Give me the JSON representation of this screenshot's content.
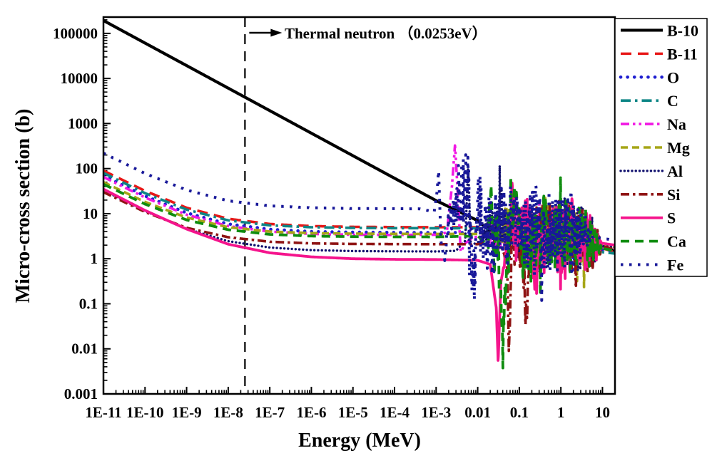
{
  "chart_data": {
    "type": "line",
    "title": "",
    "xlabel": "Energy (MeV)",
    "ylabel": "Micro-cross section (b)",
    "x_scale": "log",
    "y_scale": "log",
    "xlim": [
      1e-11,
      20
    ],
    "ylim": [
      0.001,
      230000
    ],
    "grid": false,
    "legend_position": "outside-right",
    "x_ticks": [
      {
        "v": 1e-11,
        "label": "1E-11"
      },
      {
        "v": 1e-10,
        "label": "1E-10"
      },
      {
        "v": 1e-09,
        "label": "1E-9"
      },
      {
        "v": 1e-08,
        "label": "1E-8"
      },
      {
        "v": 1e-07,
        "label": "1E-7"
      },
      {
        "v": 1e-06,
        "label": "1E-6"
      },
      {
        "v": 1e-05,
        "label": "1E-5"
      },
      {
        "v": 0.0001,
        "label": "1E-4"
      },
      {
        "v": 0.001,
        "label": "1E-3"
      },
      {
        "v": 0.01,
        "label": "0.01"
      },
      {
        "v": 0.1,
        "label": "0.1"
      },
      {
        "v": 1,
        "label": "1"
      },
      {
        "v": 10,
        "label": "10"
      }
    ],
    "y_ticks": [
      {
        "v": 0.001,
        "label": "0.001"
      },
      {
        "v": 0.01,
        "label": "0.01"
      },
      {
        "v": 0.1,
        "label": "0.1"
      },
      {
        "v": 1,
        "label": "1"
      },
      {
        "v": 10,
        "label": "10"
      },
      {
        "v": 100,
        "label": "100"
      },
      {
        "v": 1000,
        "label": "1000"
      },
      {
        "v": 10000,
        "label": "10000"
      },
      {
        "v": 100000,
        "label": "100000"
      }
    ],
    "annotation": {
      "text": "Thermal neutron （0.0253eV）",
      "energy_mev": 2.53e-08,
      "marker": "dashed-vertical-line-with-arrow"
    },
    "series": [
      {
        "name": "B-10",
        "color": "#000000",
        "dash": "",
        "cap": "butt",
        "width": 4.2,
        "anchors": [
          [
            1e-11,
            193000
          ],
          [
            1e-10,
            61000
          ],
          [
            1e-09,
            19300
          ],
          [
            1e-08,
            6100
          ],
          [
            1e-07,
            1930
          ],
          [
            1e-06,
            610
          ],
          [
            1e-05,
            193
          ],
          [
            0.0001,
            61
          ],
          [
            0.001,
            19.5
          ],
          [
            0.01,
            7
          ],
          [
            0.025,
            3.4
          ],
          [
            0.06,
            2.9
          ],
          [
            0.2,
            2.5
          ],
          [
            1,
            2.3
          ],
          [
            4,
            2.0
          ],
          [
            10,
            1.8
          ],
          [
            20,
            1.5
          ]
        ],
        "noise": null
      },
      {
        "name": "B-11",
        "color": "#e81717",
        "dash": "15 9",
        "cap": "butt",
        "width": 3.6,
        "anchors": [
          [
            1e-11,
            90
          ],
          [
            1e-10,
            32
          ],
          [
            1e-09,
            13.5
          ],
          [
            1e-08,
            7.7
          ],
          [
            1e-07,
            5.9
          ],
          [
            1e-06,
            5.3
          ],
          [
            1e-05,
            5.1
          ],
          [
            0.0001,
            5.03
          ],
          [
            0.001,
            5.0
          ],
          [
            0.01,
            5.0
          ],
          [
            0.1,
            4.8
          ],
          [
            0.4,
            4.4
          ],
          [
            1,
            4.0
          ],
          [
            3,
            2.8
          ],
          [
            6,
            2.0
          ],
          [
            10,
            1.7
          ],
          [
            20,
            1.4
          ]
        ],
        "noise": {
          "from": 0.3,
          "to": 10,
          "amp": 0.28,
          "points": 110,
          "seed": 7
        }
      },
      {
        "name": "O",
        "color": "#1f1fd0",
        "dash": "0.1 9.5",
        "cap": "round",
        "width": 4.6,
        "anchors": [
          [
            1e-11,
            70
          ],
          [
            1e-10,
            24.7
          ],
          [
            1e-09,
            10.4
          ],
          [
            1e-08,
            5.9
          ],
          [
            1e-07,
            4.5
          ],
          [
            1e-06,
            4.0
          ],
          [
            1e-05,
            3.87
          ],
          [
            0.0001,
            3.82
          ],
          [
            0.001,
            3.8
          ],
          [
            0.01,
            3.8
          ],
          [
            0.1,
            3.75
          ],
          [
            0.3,
            3.7
          ],
          [
            0.44,
            8
          ],
          [
            0.6,
            3.0
          ],
          [
            1,
            6.0
          ],
          [
            2.3,
            0.9
          ],
          [
            3,
            5.0
          ],
          [
            4,
            2.5
          ],
          [
            6,
            1.8
          ],
          [
            10,
            1.6
          ],
          [
            20,
            1.5
          ]
        ],
        "noise": {
          "from": 0.35,
          "to": 8,
          "amp": 0.5,
          "points": 140,
          "seed": 11
        }
      },
      {
        "name": "C",
        "color": "#0d8585",
        "dash": "14 6 3.5 6",
        "cap": "butt",
        "width": 3.6,
        "anchors": [
          [
            1e-11,
            80
          ],
          [
            1e-10,
            28.5
          ],
          [
            1e-09,
            12.3
          ],
          [
            1e-08,
            7.1
          ],
          [
            1e-07,
            5.5
          ],
          [
            1e-06,
            5.0
          ],
          [
            1e-05,
            4.83
          ],
          [
            0.0001,
            4.77
          ],
          [
            0.001,
            4.75
          ],
          [
            0.01,
            4.75
          ],
          [
            0.1,
            4.6
          ],
          [
            0.5,
            4.3
          ],
          [
            1,
            3.9
          ],
          [
            2,
            3.2
          ],
          [
            3,
            2.7
          ],
          [
            4.5,
            1.9
          ],
          [
            6,
            1.4
          ],
          [
            10,
            1.4
          ],
          [
            20,
            1.3
          ]
        ],
        "noise": {
          "from": 1.8,
          "to": 8,
          "amp": 0.35,
          "points": 90,
          "seed": 13
        }
      },
      {
        "name": "Na",
        "color": "#f118e3",
        "dash": "12 5 3.5 5 3.5 5",
        "cap": "butt",
        "width": 3.6,
        "anchors": [
          [
            1e-11,
            65
          ],
          [
            1e-10,
            22.8
          ],
          [
            1e-09,
            9.5
          ],
          [
            1e-08,
            5.3
          ],
          [
            1e-07,
            4.0
          ],
          [
            1e-06,
            3.55
          ],
          [
            1e-05,
            3.41
          ],
          [
            0.0001,
            3.37
          ],
          [
            0.001,
            3.4
          ],
          [
            0.0018,
            3.8
          ],
          [
            0.0024,
            40
          ],
          [
            0.00285,
            340
          ],
          [
            0.0033,
            30
          ],
          [
            0.0039,
            1.4
          ],
          [
            0.005,
            2.2
          ],
          [
            0.008,
            3.0
          ],
          [
            0.02,
            3.2
          ],
          [
            0.05,
            3.3
          ],
          [
            0.2,
            4.0
          ],
          [
            0.5,
            6.0
          ],
          [
            1,
            3.5
          ],
          [
            3,
            2.5
          ],
          [
            10,
            1.8
          ],
          [
            20,
            1.7
          ]
        ],
        "noise": {
          "from": 0.012,
          "to": 10,
          "amp": 0.55,
          "points": 150,
          "seed": 17
        }
      },
      {
        "name": "Mg",
        "color": "#a6a617",
        "dash": "10 6",
        "cap": "butt",
        "width": 3.6,
        "anchors": [
          [
            1e-11,
            50
          ],
          [
            1e-10,
            18.2
          ],
          [
            1e-09,
            8.2
          ],
          [
            1e-08,
            5.0
          ],
          [
            1e-07,
            4.0
          ],
          [
            1e-06,
            3.7
          ],
          [
            1e-05,
            3.6
          ],
          [
            0.0001,
            3.56
          ],
          [
            0.001,
            3.55
          ],
          [
            0.01,
            3.55
          ],
          [
            0.03,
            3.6
          ],
          [
            0.08,
            6.0
          ],
          [
            0.15,
            2.5
          ],
          [
            0.4,
            4.0
          ],
          [
            1,
            3.6
          ],
          [
            3,
            2.6
          ],
          [
            6,
            2.1
          ],
          [
            10,
            1.9
          ],
          [
            20,
            1.8
          ]
        ],
        "noise": {
          "from": 0.025,
          "to": 10,
          "amp": 0.7,
          "points": 170,
          "seed": 19
        }
      },
      {
        "name": "Al",
        "color": "#10106e",
        "dash": "0.1 5.2",
        "cap": "round",
        "width": 3.4,
        "anchors": [
          [
            1e-11,
            33
          ],
          [
            1e-10,
            11.4
          ],
          [
            1e-09,
            4.6
          ],
          [
            1e-08,
            2.45
          ],
          [
            1e-07,
            1.77
          ],
          [
            1e-06,
            1.55
          ],
          [
            1e-05,
            1.48
          ],
          [
            0.0001,
            1.46
          ],
          [
            0.001,
            1.45
          ],
          [
            0.003,
            1.5
          ],
          [
            0.005,
            2.5
          ],
          [
            0.0059,
            115
          ],
          [
            0.0068,
            2.0
          ],
          [
            0.01,
            2.3
          ],
          [
            0.035,
            8.0
          ],
          [
            0.1,
            3.2
          ],
          [
            0.3,
            3.0
          ],
          [
            1,
            3.3
          ],
          [
            3,
            2.8
          ],
          [
            6,
            2.2
          ],
          [
            10,
            1.9
          ],
          [
            20,
            1.8
          ]
        ],
        "noise": {
          "from": 0.012,
          "to": 10,
          "amp": 0.8,
          "points": 280,
          "seed": 23
        }
      },
      {
        "name": "Si",
        "color": "#8f1414",
        "dash": "12 5 3.5 5",
        "cap": "butt",
        "width": 3.6,
        "anchors": [
          [
            1e-11,
            30
          ],
          [
            1e-10,
            10.9
          ],
          [
            1e-09,
            4.85
          ],
          [
            1e-08,
            3.0
          ],
          [
            1e-07,
            2.38
          ],
          [
            1e-06,
            2.19
          ],
          [
            1e-05,
            2.13
          ],
          [
            0.0001,
            2.11
          ],
          [
            0.001,
            2.1
          ],
          [
            0.01,
            2.1
          ],
          [
            0.03,
            2.6
          ],
          [
            0.05,
            1.0
          ],
          [
            0.056,
            0.008
          ],
          [
            0.065,
            2.5
          ],
          [
            0.1,
            3.0
          ],
          [
            0.15,
            0.06
          ],
          [
            0.19,
            3.5
          ],
          [
            0.5,
            3.5
          ],
          [
            1,
            3.6
          ],
          [
            3,
            2.9
          ],
          [
            6,
            2.2
          ],
          [
            10,
            1.9
          ],
          [
            20,
            1.6
          ]
        ],
        "noise": {
          "from": 0.04,
          "to": 10,
          "amp": 0.8,
          "points": 180,
          "seed": 29
        }
      },
      {
        "name": "S",
        "color": "#f5148c",
        "dash": "",
        "cap": "butt",
        "width": 3.8,
        "anchors": [
          [
            1e-11,
            35
          ],
          [
            1e-10,
            11.8
          ],
          [
            1e-09,
            4.55
          ],
          [
            1e-08,
            2.1
          ],
          [
            1e-07,
            1.35
          ],
          [
            1e-06,
            1.1
          ],
          [
            1e-05,
            1.0
          ],
          [
            0.0001,
            0.97
          ],
          [
            0.001,
            0.96
          ],
          [
            0.01,
            0.92
          ],
          [
            0.02,
            0.75
          ],
          [
            0.028,
            0.08
          ],
          [
            0.031,
            0.005
          ],
          [
            0.036,
            0.3
          ],
          [
            0.05,
            1.5
          ],
          [
            0.07,
            25
          ],
          [
            0.09,
            1.0
          ],
          [
            0.11,
            15
          ],
          [
            0.2,
            2.0
          ],
          [
            0.5,
            3.0
          ],
          [
            1,
            3.2
          ],
          [
            3,
            2.8
          ],
          [
            6,
            2.4
          ],
          [
            10,
            2.2
          ],
          [
            20,
            2.0
          ]
        ],
        "noise": {
          "from": 0.04,
          "to": 10,
          "amp": 0.85,
          "points": 200,
          "seed": 31
        }
      },
      {
        "name": "Ca",
        "color": "#0f8c0f",
        "dash": "12 8",
        "cap": "butt",
        "width": 3.8,
        "anchors": [
          [
            1e-11,
            45
          ],
          [
            1e-10,
            16.3
          ],
          [
            1e-09,
            7.25
          ],
          [
            1e-08,
            4.4
          ],
          [
            1e-07,
            3.47
          ],
          [
            1e-06,
            3.18
          ],
          [
            1e-05,
            3.09
          ],
          [
            0.0001,
            3.06
          ],
          [
            0.001,
            3.05
          ],
          [
            0.01,
            3.2
          ],
          [
            0.018,
            2.0
          ],
          [
            0.021,
            75
          ],
          [
            0.024,
            0.6
          ],
          [
            0.03,
            6.0
          ],
          [
            0.04,
            0.012
          ],
          [
            0.055,
            8.0
          ],
          [
            0.09,
            40
          ],
          [
            0.13,
            1.0
          ],
          [
            0.3,
            3.0
          ],
          [
            1,
            4.0
          ],
          [
            3,
            2.5
          ],
          [
            6,
            2.0
          ],
          [
            10,
            1.7
          ],
          [
            20,
            1.5
          ]
        ],
        "noise": {
          "from": 0.015,
          "to": 10,
          "amp": 0.85,
          "points": 210,
          "seed": 37
        }
      },
      {
        "name": "Fe",
        "color": "#181899",
        "dash": "3.5 8.5",
        "cap": "butt",
        "width": 4,
        "anchors": [
          [
            1e-11,
            220
          ],
          [
            1e-10,
            78
          ],
          [
            1e-09,
            33.5
          ],
          [
            1e-08,
            19.3
          ],
          [
            1e-07,
            14.9
          ],
          [
            1e-06,
            13.5
          ],
          [
            1e-05,
            13.0
          ],
          [
            0.0001,
            12.9
          ],
          [
            0.0004,
            12.8
          ],
          [
            0.0009,
            11
          ],
          [
            0.00105,
            30
          ],
          [
            0.00115,
            95
          ],
          [
            0.0013,
            2.5
          ],
          [
            0.0016,
            0.9
          ],
          [
            0.002,
            9.0
          ],
          [
            0.003,
            11
          ],
          [
            0.006,
            30
          ],
          [
            0.008,
            0.5
          ],
          [
            0.01,
            8.0
          ],
          [
            0.02,
            4.5
          ],
          [
            0.05,
            5.0
          ],
          [
            0.1,
            4.0
          ],
          [
            0.3,
            4.0
          ],
          [
            1,
            3.6
          ],
          [
            2,
            3.4
          ],
          [
            4,
            3.3
          ],
          [
            7,
            3.0
          ],
          [
            10,
            2.8
          ],
          [
            20,
            2.6
          ]
        ],
        "noise": {
          "from": 0.0015,
          "to": 6,
          "amp": 1.05,
          "points": 430,
          "seed": 41
        }
      }
    ]
  }
}
